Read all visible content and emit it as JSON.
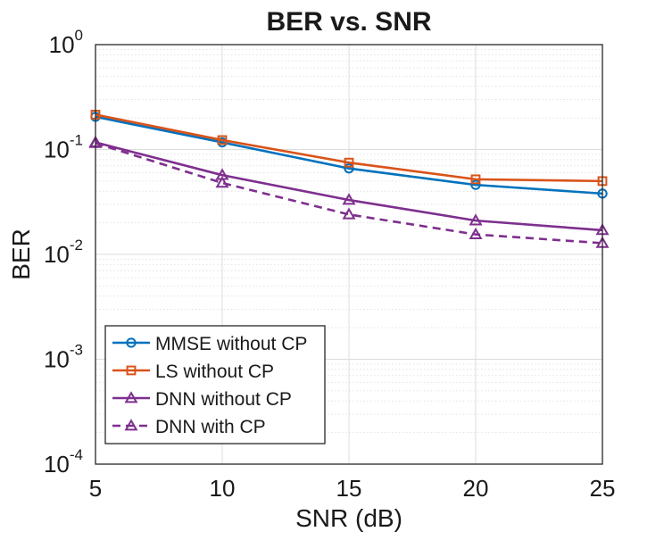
{
  "chart_data": {
    "type": "line",
    "title": "BER vs. SNR",
    "xlabel": "SNR (dB)",
    "ylabel": "BER",
    "x": [
      5,
      10,
      15,
      20,
      25
    ],
    "xlim": [
      5,
      25
    ],
    "ylim": [
      0.0001,
      1
    ],
    "yscale": "log",
    "grid": true,
    "minor_grid": true,
    "legend_position": "lower-left",
    "x_ticks": [
      "5",
      "10",
      "15",
      "20",
      "25"
    ],
    "y_ticks": [
      {
        "base": "10",
        "exp": "0"
      },
      {
        "base": "10",
        "exp": "-1"
      },
      {
        "base": "10",
        "exp": "-2"
      },
      {
        "base": "10",
        "exp": "-3"
      },
      {
        "base": "10",
        "exp": "-4"
      }
    ],
    "series": [
      {
        "name": "MMSE without CP",
        "color": "#0072BD",
        "marker": "circle",
        "dash": "solid",
        "values": [
          0.205,
          0.117,
          0.066,
          0.046,
          0.038
        ]
      },
      {
        "name": "LS without CP",
        "color": "#D95319",
        "marker": "square",
        "dash": "solid",
        "values": [
          0.215,
          0.123,
          0.075,
          0.052,
          0.05
        ]
      },
      {
        "name": "DNN without CP",
        "color": "#7E2F8E",
        "marker": "triangle",
        "dash": "solid",
        "values": [
          0.117,
          0.057,
          0.033,
          0.021,
          0.017
        ]
      },
      {
        "name": "DNN with CP",
        "color": "#7E2F8E",
        "marker": "triangle",
        "dash": "dashed",
        "values": [
          0.115,
          0.048,
          0.024,
          0.0155,
          0.0128
        ]
      }
    ]
  }
}
